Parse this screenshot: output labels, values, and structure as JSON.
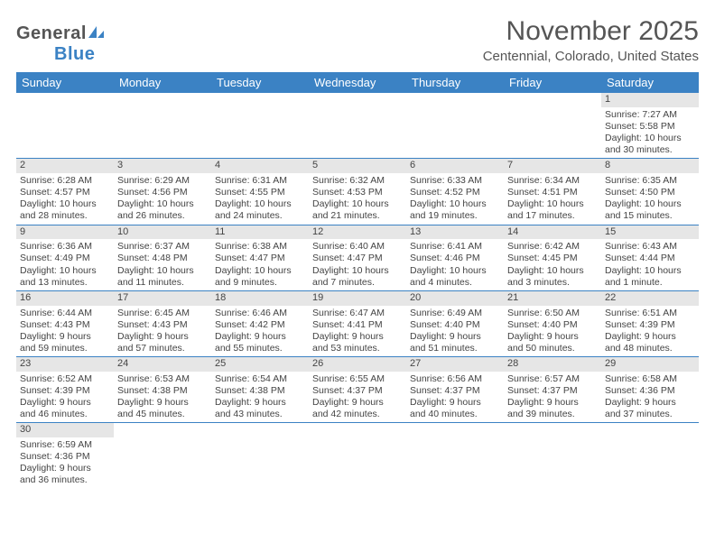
{
  "logo": {
    "text_general": "General",
    "text_blue": "Blue"
  },
  "title": "November 2025",
  "location": "Centennial, Colorado, United States",
  "weekdays": [
    "Sunday",
    "Monday",
    "Tuesday",
    "Wednesday",
    "Thursday",
    "Friday",
    "Saturday"
  ],
  "colors": {
    "header_bg": "#3b82c4",
    "header_text": "#ffffff",
    "daynum_bg": "#e6e6e6",
    "text": "#444444",
    "border": "#3b82c4"
  },
  "weeks": [
    [
      null,
      null,
      null,
      null,
      null,
      null,
      {
        "n": "1",
        "sunrise": "Sunrise: 7:27 AM",
        "sunset": "Sunset: 5:58 PM",
        "day1": "Daylight: 10 hours",
        "day2": "and 30 minutes."
      }
    ],
    [
      {
        "n": "2",
        "sunrise": "Sunrise: 6:28 AM",
        "sunset": "Sunset: 4:57 PM",
        "day1": "Daylight: 10 hours",
        "day2": "and 28 minutes."
      },
      {
        "n": "3",
        "sunrise": "Sunrise: 6:29 AM",
        "sunset": "Sunset: 4:56 PM",
        "day1": "Daylight: 10 hours",
        "day2": "and 26 minutes."
      },
      {
        "n": "4",
        "sunrise": "Sunrise: 6:31 AM",
        "sunset": "Sunset: 4:55 PM",
        "day1": "Daylight: 10 hours",
        "day2": "and 24 minutes."
      },
      {
        "n": "5",
        "sunrise": "Sunrise: 6:32 AM",
        "sunset": "Sunset: 4:53 PM",
        "day1": "Daylight: 10 hours",
        "day2": "and 21 minutes."
      },
      {
        "n": "6",
        "sunrise": "Sunrise: 6:33 AM",
        "sunset": "Sunset: 4:52 PM",
        "day1": "Daylight: 10 hours",
        "day2": "and 19 minutes."
      },
      {
        "n": "7",
        "sunrise": "Sunrise: 6:34 AM",
        "sunset": "Sunset: 4:51 PM",
        "day1": "Daylight: 10 hours",
        "day2": "and 17 minutes."
      },
      {
        "n": "8",
        "sunrise": "Sunrise: 6:35 AM",
        "sunset": "Sunset: 4:50 PM",
        "day1": "Daylight: 10 hours",
        "day2": "and 15 minutes."
      }
    ],
    [
      {
        "n": "9",
        "sunrise": "Sunrise: 6:36 AM",
        "sunset": "Sunset: 4:49 PM",
        "day1": "Daylight: 10 hours",
        "day2": "and 13 minutes."
      },
      {
        "n": "10",
        "sunrise": "Sunrise: 6:37 AM",
        "sunset": "Sunset: 4:48 PM",
        "day1": "Daylight: 10 hours",
        "day2": "and 11 minutes."
      },
      {
        "n": "11",
        "sunrise": "Sunrise: 6:38 AM",
        "sunset": "Sunset: 4:47 PM",
        "day1": "Daylight: 10 hours",
        "day2": "and 9 minutes."
      },
      {
        "n": "12",
        "sunrise": "Sunrise: 6:40 AM",
        "sunset": "Sunset: 4:47 PM",
        "day1": "Daylight: 10 hours",
        "day2": "and 7 minutes."
      },
      {
        "n": "13",
        "sunrise": "Sunrise: 6:41 AM",
        "sunset": "Sunset: 4:46 PM",
        "day1": "Daylight: 10 hours",
        "day2": "and 4 minutes."
      },
      {
        "n": "14",
        "sunrise": "Sunrise: 6:42 AM",
        "sunset": "Sunset: 4:45 PM",
        "day1": "Daylight: 10 hours",
        "day2": "and 3 minutes."
      },
      {
        "n": "15",
        "sunrise": "Sunrise: 6:43 AM",
        "sunset": "Sunset: 4:44 PM",
        "day1": "Daylight: 10 hours",
        "day2": "and 1 minute."
      }
    ],
    [
      {
        "n": "16",
        "sunrise": "Sunrise: 6:44 AM",
        "sunset": "Sunset: 4:43 PM",
        "day1": "Daylight: 9 hours",
        "day2": "and 59 minutes."
      },
      {
        "n": "17",
        "sunrise": "Sunrise: 6:45 AM",
        "sunset": "Sunset: 4:43 PM",
        "day1": "Daylight: 9 hours",
        "day2": "and 57 minutes."
      },
      {
        "n": "18",
        "sunrise": "Sunrise: 6:46 AM",
        "sunset": "Sunset: 4:42 PM",
        "day1": "Daylight: 9 hours",
        "day2": "and 55 minutes."
      },
      {
        "n": "19",
        "sunrise": "Sunrise: 6:47 AM",
        "sunset": "Sunset: 4:41 PM",
        "day1": "Daylight: 9 hours",
        "day2": "and 53 minutes."
      },
      {
        "n": "20",
        "sunrise": "Sunrise: 6:49 AM",
        "sunset": "Sunset: 4:40 PM",
        "day1": "Daylight: 9 hours",
        "day2": "and 51 minutes."
      },
      {
        "n": "21",
        "sunrise": "Sunrise: 6:50 AM",
        "sunset": "Sunset: 4:40 PM",
        "day1": "Daylight: 9 hours",
        "day2": "and 50 minutes."
      },
      {
        "n": "22",
        "sunrise": "Sunrise: 6:51 AM",
        "sunset": "Sunset: 4:39 PM",
        "day1": "Daylight: 9 hours",
        "day2": "and 48 minutes."
      }
    ],
    [
      {
        "n": "23",
        "sunrise": "Sunrise: 6:52 AM",
        "sunset": "Sunset: 4:39 PM",
        "day1": "Daylight: 9 hours",
        "day2": "and 46 minutes."
      },
      {
        "n": "24",
        "sunrise": "Sunrise: 6:53 AM",
        "sunset": "Sunset: 4:38 PM",
        "day1": "Daylight: 9 hours",
        "day2": "and 45 minutes."
      },
      {
        "n": "25",
        "sunrise": "Sunrise: 6:54 AM",
        "sunset": "Sunset: 4:38 PM",
        "day1": "Daylight: 9 hours",
        "day2": "and 43 minutes."
      },
      {
        "n": "26",
        "sunrise": "Sunrise: 6:55 AM",
        "sunset": "Sunset: 4:37 PM",
        "day1": "Daylight: 9 hours",
        "day2": "and 42 minutes."
      },
      {
        "n": "27",
        "sunrise": "Sunrise: 6:56 AM",
        "sunset": "Sunset: 4:37 PM",
        "day1": "Daylight: 9 hours",
        "day2": "and 40 minutes."
      },
      {
        "n": "28",
        "sunrise": "Sunrise: 6:57 AM",
        "sunset": "Sunset: 4:37 PM",
        "day1": "Daylight: 9 hours",
        "day2": "and 39 minutes."
      },
      {
        "n": "29",
        "sunrise": "Sunrise: 6:58 AM",
        "sunset": "Sunset: 4:36 PM",
        "day1": "Daylight: 9 hours",
        "day2": "and 37 minutes."
      }
    ],
    [
      {
        "n": "30",
        "sunrise": "Sunrise: 6:59 AM",
        "sunset": "Sunset: 4:36 PM",
        "day1": "Daylight: 9 hours",
        "day2": "and 36 minutes."
      },
      null,
      null,
      null,
      null,
      null,
      null
    ]
  ]
}
